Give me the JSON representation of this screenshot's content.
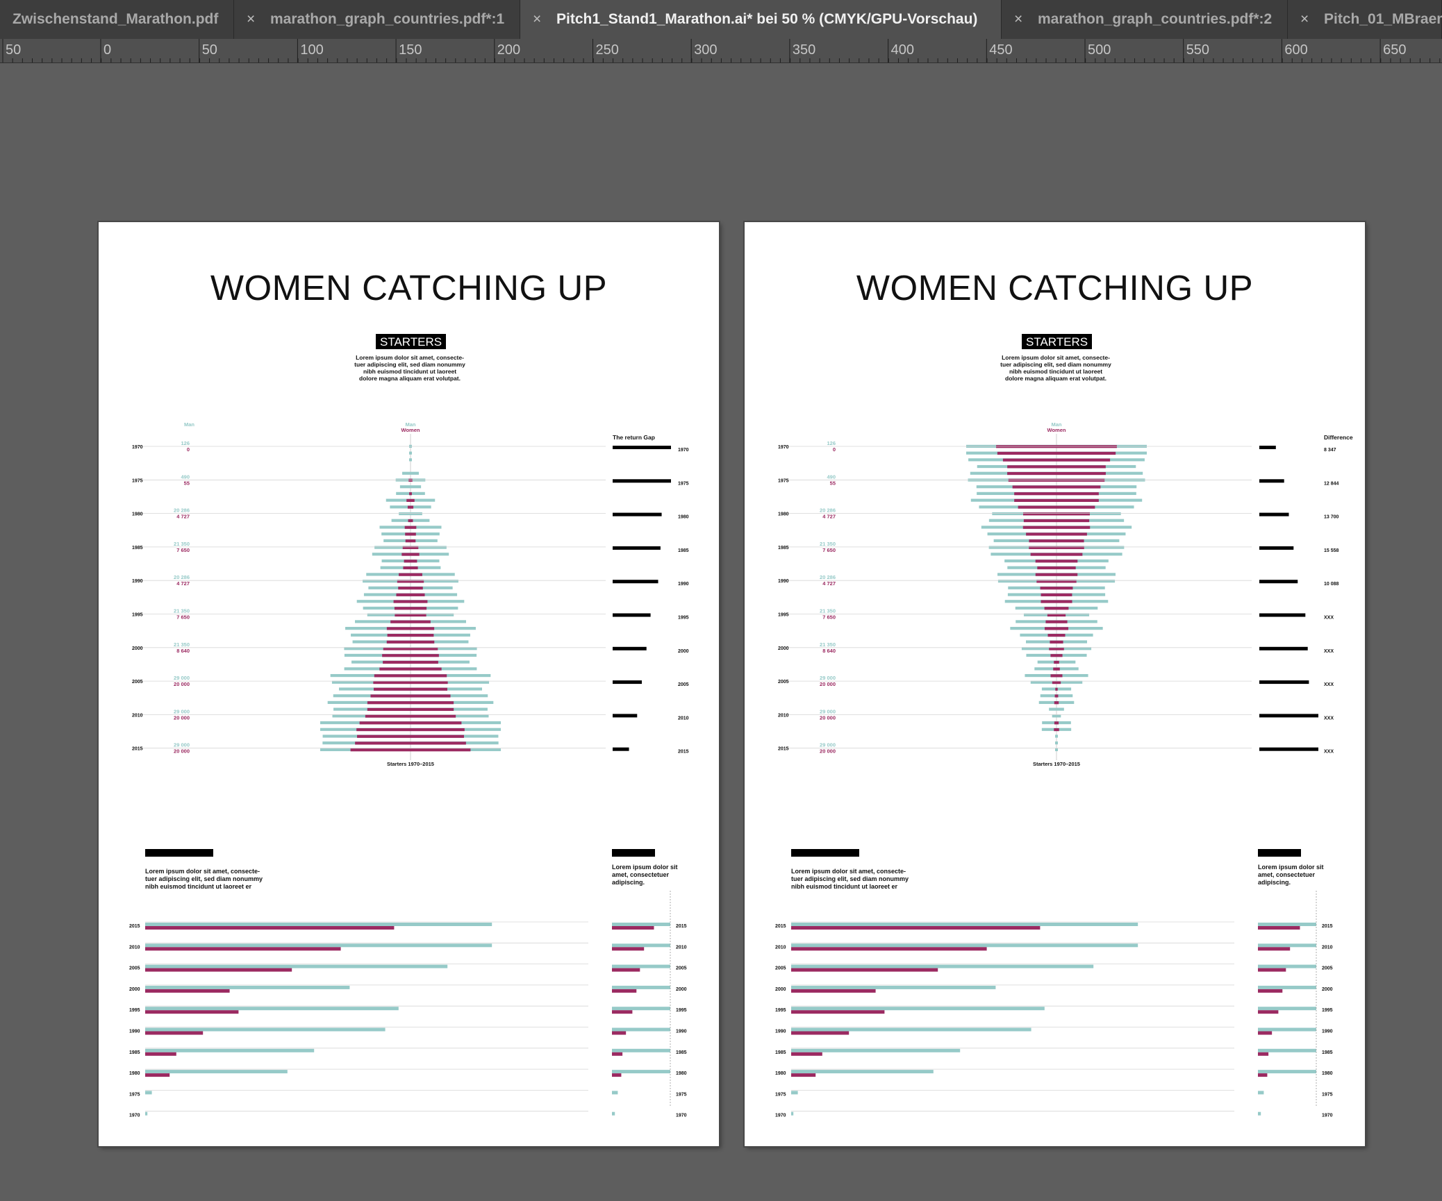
{
  "tabs": [
    {
      "label": "Zwischenstand_Marathon.pdf",
      "active": false,
      "close": ""
    },
    {
      "label": "marathon_graph_countries.pdf*:1",
      "active": false,
      "close": "×"
    },
    {
      "label": "Pitch1_Stand1_Marathon.ai* bei 50 % (CMYK/GPU-Vorschau)",
      "active": true,
      "close": "×"
    },
    {
      "label": "marathon_graph_countries.pdf*:2",
      "active": false,
      "close": "×"
    },
    {
      "label": "Pitch_01_MBraem",
      "active": false,
      "close": "×"
    }
  ],
  "ruler": {
    "labels": [
      "50",
      "0",
      "50",
      "100",
      "150",
      "200",
      "250",
      "300",
      "350",
      "400",
      "450",
      "500",
      "550",
      "600",
      "650"
    ]
  },
  "colors": {
    "men": "#96cac8",
    "women": "#9b2a61",
    "black": "#000000",
    "grid": "#d6d6d6"
  },
  "artboards": [
    {
      "title": "WOMEN CATCHING UP",
      "badge": "STARTERS",
      "intro": "Lorem ipsum dolor sit amet, consecte-\ntuer adipiscing elit, sed diam nonummy\nnibh euismod tincidunt ut laoreet\ndolore magna aliquam erat volutpat.",
      "label_men_left": "Man",
      "label_men_center": "Man",
      "label_women_center": "Women",
      "right_header": "The return Gap",
      "axis_caption": "Starters 1970–2015",
      "years": [
        "1970",
        "1975",
        "1980",
        "1985",
        "1990",
        "1995",
        "2000",
        "2005",
        "2010",
        "2015"
      ],
      "men_counts": [
        "126",
        "490",
        "20 286",
        "21 350",
        "20 286",
        "21 350",
        "21 350",
        "29 000",
        "29 000",
        "29 000"
      ],
      "women_counts": [
        "0",
        "55",
        "4 727",
        "7 650",
        "4 727",
        "7 650",
        "8 640",
        "20 000",
        "20 000",
        "20 000"
      ],
      "right_values": [
        "",
        "",
        "",
        "",
        "",
        "",
        "",
        "",
        "",
        ""
      ],
      "gap_fraction": [
        1.0,
        1.0,
        0.84,
        0.82,
        0.78,
        0.65,
        0.58,
        0.5,
        0.42,
        0.28
      ],
      "bottom_caption": "Lorem ipsum dolor sit amet, consecte-\ntuer adipiscing elit, sed diam nonummy\nnibh euismod tincidunt ut laoreet er",
      "side_caption": "Lorem ipsum dolor sit\namet, consectetuer\nadipiscing.",
      "bottom_years": [
        "2015",
        "2010",
        "2005",
        "2000",
        "1995",
        "1990",
        "1985",
        "1980",
        "1975",
        "1970"
      ],
      "bottom_men": [
        0.78,
        0.78,
        0.68,
        0.46,
        0.57,
        0.54,
        0.38,
        0.32,
        0.015,
        0.005
      ],
      "bottom_women": [
        0.56,
        0.44,
        0.33,
        0.19,
        0.21,
        0.13,
        0.07,
        0.055,
        0,
        0
      ],
      "side_men": [
        1,
        1,
        1,
        1,
        1,
        1,
        1,
        1,
        0.1,
        0.05
      ],
      "side_women": [
        0.72,
        0.55,
        0.48,
        0.42,
        0.35,
        0.24,
        0.18,
        0.16,
        0,
        0
      ],
      "pyramid": "up"
    },
    {
      "title": "WOMEN CATCHING UP",
      "badge": "STARTERS",
      "intro": "Lorem ipsum dolor sit amet, consecte-\ntuer adipiscing elit, sed diam nonummy\nnibh euismod tincidunt ut laoreet\ndolore magna aliquam erat volutpat.",
      "label_men_left": "",
      "label_men_center": "Man",
      "label_women_center": "Women",
      "right_header": "Difference",
      "axis_caption": "Starters 1970–2015",
      "years": [
        "1970",
        "1975",
        "1980",
        "1985",
        "1990",
        "1995",
        "2000",
        "2005",
        "2010",
        "2015"
      ],
      "men_counts": [
        "126",
        "490",
        "20 286",
        "21 350",
        "20 286",
        "21 350",
        "21 350",
        "29 000",
        "29 000",
        "29 000"
      ],
      "women_counts": [
        "0",
        "55",
        "4 727",
        "7 650",
        "4 727",
        "7 650",
        "8 640",
        "20 000",
        "20 000",
        "20 000"
      ],
      "right_values": [
        "8 347",
        "12 844",
        "13 700",
        "15 558",
        "10 088",
        "XXX",
        "XXX",
        "XXX",
        "XXX",
        "XXX"
      ],
      "gap_fraction": [
        0.28,
        0.42,
        0.5,
        0.58,
        0.65,
        0.78,
        0.82,
        0.84,
        1.0,
        1.0
      ],
      "bottom_caption": "Lorem ipsum dolor sit amet, consecte-\ntuer adipiscing elit, sed diam nonummy\nnibh euismod tincidunt ut laoreet er",
      "side_caption": "Lorem ipsum dolor sit\namet, consectetuer\nadipiscing.",
      "bottom_years": [
        "2015",
        "2010",
        "2005",
        "2000",
        "1995",
        "1990",
        "1985",
        "1980",
        "1975",
        "1970"
      ],
      "bottom_men": [
        0.78,
        0.78,
        0.68,
        0.46,
        0.57,
        0.54,
        0.38,
        0.32,
        0.015,
        0.005
      ],
      "bottom_women": [
        0.56,
        0.44,
        0.33,
        0.19,
        0.21,
        0.13,
        0.07,
        0.055,
        0,
        0
      ],
      "side_men": [
        1,
        1,
        1,
        1,
        1,
        1,
        1,
        1,
        0.1,
        0.05
      ],
      "side_women": [
        0.72,
        0.55,
        0.48,
        0.42,
        0.35,
        0.24,
        0.18,
        0.16,
        0,
        0
      ],
      "pyramid": "down"
    }
  ]
}
